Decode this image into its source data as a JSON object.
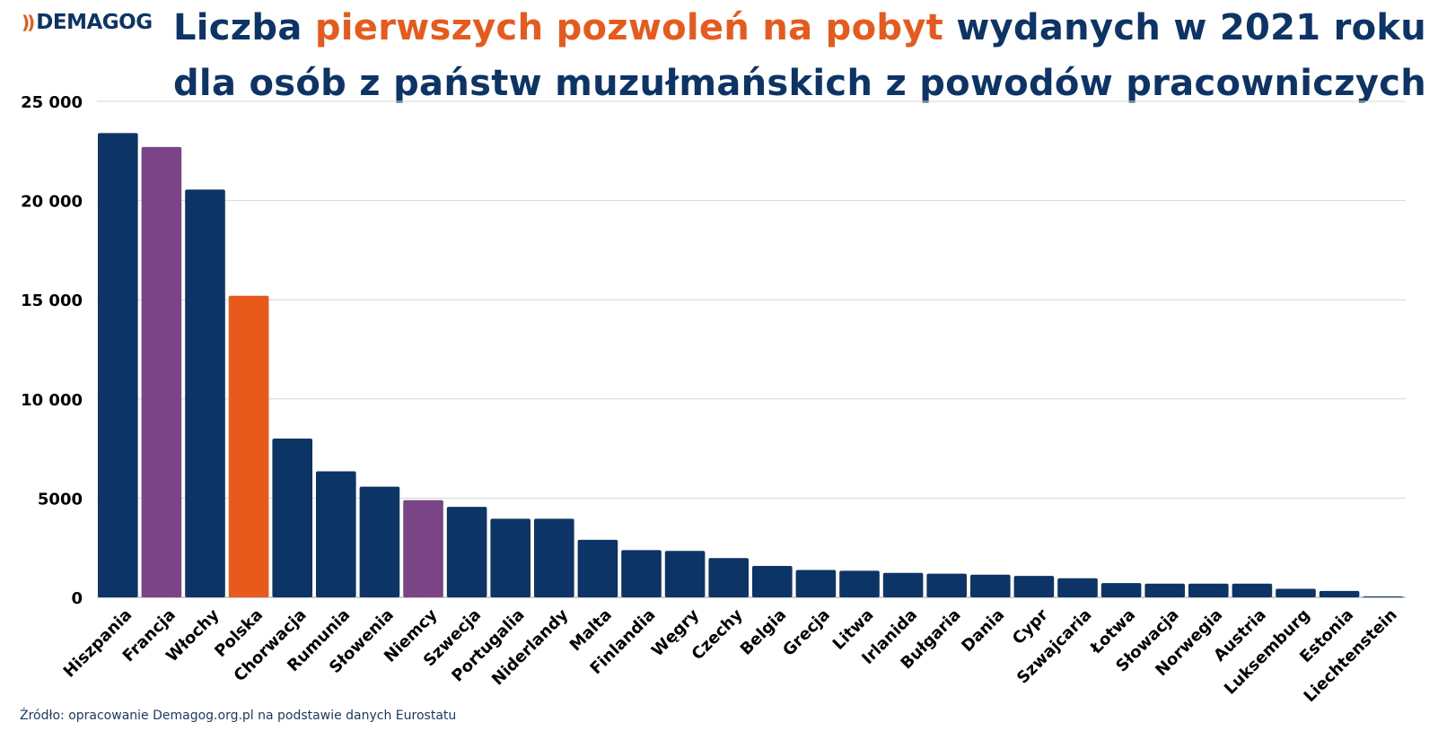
{
  "logo": {
    "mark": "))",
    "text": "DEMAGOG"
  },
  "title": {
    "part1": "Liczba ",
    "accent": "pierwszych pozwoleń na pobyt",
    "part2": " wydanych w 2021 roku",
    "line2": "dla osób z państw muzułmańskich z powodów pracowniczych"
  },
  "source": "Źródło: opracowanie Demagog.org.pl na podstawie danych Eurostatu",
  "colors": {
    "navy": "#0d3466",
    "purple": "#7b4486",
    "orange": "#e85a1c",
    "grid": "#d6d6d6"
  },
  "chart_data": {
    "type": "bar",
    "title": "Liczba pierwszych pozwoleń na pobyt wydanych w 2021 roku dla osób z państw muzułmańskich z powodów pracowniczych",
    "xlabel": "",
    "ylabel": "",
    "ylim": [
      0,
      25000
    ],
    "yticks": [
      0,
      5000,
      10000,
      15000,
      20000,
      25000
    ],
    "ytick_labels": [
      "0",
      "5000",
      "10 000",
      "15 000",
      "20 000",
      "25 000"
    ],
    "grid": true,
    "legend": "none",
    "categories": [
      "Hiszpania",
      "Francja",
      "Włochy",
      "Polska",
      "Chorwacja",
      "Rumunia",
      "Słowenia",
      "Niemcy",
      "Szwecja",
      "Portugalia",
      "Niderlandy",
      "Malta",
      "Finlandia",
      "Węgry",
      "Czechy",
      "Belgia",
      "Grecja",
      "Litwa",
      "Irlanida",
      "Bułgaria",
      "Dania",
      "Cypr",
      "Szwajcaria",
      "Łotwa",
      "Słowacja",
      "Norwegia",
      "Austria",
      "Luksemburg",
      "Estonia",
      "Liechtenstein"
    ],
    "values": [
      23400,
      22700,
      20550,
      15200,
      8000,
      6350,
      5580,
      4900,
      4560,
      3960,
      3960,
      2900,
      2380,
      2340,
      1980,
      1580,
      1380,
      1340,
      1230,
      1190,
      1140,
      1080,
      960,
      720,
      690,
      690,
      690,
      430,
      320,
      20
    ],
    "bar_colors": [
      "navy",
      "purple",
      "navy",
      "orange",
      "navy",
      "navy",
      "navy",
      "purple",
      "navy",
      "navy",
      "navy",
      "navy",
      "navy",
      "navy",
      "navy",
      "navy",
      "navy",
      "navy",
      "navy",
      "navy",
      "navy",
      "navy",
      "navy",
      "navy",
      "navy",
      "navy",
      "navy",
      "navy",
      "navy",
      "navy"
    ]
  }
}
